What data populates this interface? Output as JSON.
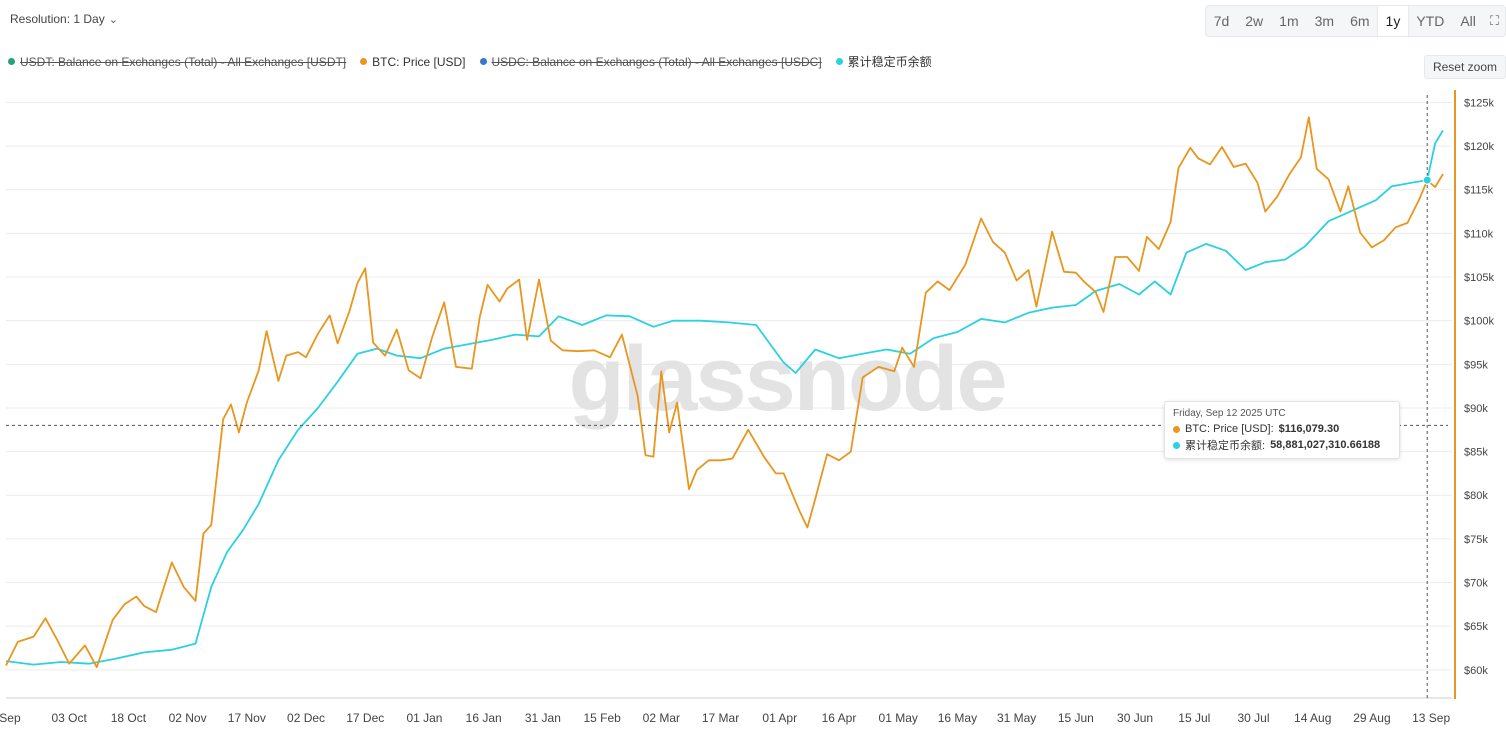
{
  "toolbar": {
    "resolution_label": "Resolution: 1 Day",
    "ranges": [
      "7d",
      "2w",
      "1m",
      "3m",
      "6m",
      "1y",
      "YTD",
      "All"
    ],
    "active_range": "1y",
    "reset_zoom_label": "Reset zoom"
  },
  "watermark": "glassnode",
  "colors": {
    "btc": "#E8961E",
    "stable": "#2BD1E0",
    "usdt": "#26A17B",
    "usdc": "#3B76C9",
    "grid": "#ececec",
    "axis_line": "#E8961E"
  },
  "legend": [
    {
      "label": "USDT: Balance on Exchanges (Total) - All Exchanges [USDT]",
      "color": "#26A17B",
      "enabled": false
    },
    {
      "label": "BTC: Price [USD]",
      "color": "#E8961E",
      "enabled": true
    },
    {
      "label": "USDC: Balance on Exchanges (Total) - All Exchanges [USDC]",
      "color": "#3B76C9",
      "enabled": false
    },
    {
      "label": "累计稳定币余额",
      "color": "#2BD1E0",
      "enabled": true
    }
  ],
  "tooltip": {
    "date": "Friday, Sep 12 2025 UTC",
    "btc_label": "BTC: Price [USD]:",
    "btc_value": "$116,079.30",
    "stable_label": "累计稳定币余额:",
    "stable_value": "58,881,027,310.66188"
  },
  "chart_data": {
    "type": "line",
    "title": "",
    "xlabel": "",
    "ylabel": "",
    "ylim": [
      57000,
      127000
    ],
    "y_ticks": [
      "$60k",
      "$65k",
      "$70k",
      "$75k",
      "$80k",
      "$85k",
      "$90k",
      "$95k",
      "$100k",
      "$105k",
      "$110k",
      "$115k",
      "$120k",
      "$125k"
    ],
    "x_tick_labels": [
      "Sep",
      "03 Oct",
      "18 Oct",
      "02 Nov",
      "17 Nov",
      "02 Dec",
      "17 Dec",
      "01 Jan",
      "16 Jan",
      "31 Jan",
      "15 Feb",
      "02 Mar",
      "17 Mar",
      "01 Apr",
      "16 Apr",
      "01 May",
      "16 May",
      "31 May",
      "15 Jun",
      "30 Jun",
      "15 Jul",
      "30 Jul",
      "14 Aug",
      "29 Aug",
      "13 Sep"
    ],
    "x_tick_dates": [
      "2024-09-18",
      "2024-10-03",
      "2024-10-18",
      "2024-11-02",
      "2024-11-17",
      "2024-12-02",
      "2024-12-17",
      "2025-01-01",
      "2025-01-16",
      "2025-01-31",
      "2025-02-15",
      "2025-03-02",
      "2025-03-17",
      "2025-04-01",
      "2025-04-16",
      "2025-05-01",
      "2025-05-16",
      "2025-05-31",
      "2025-06-15",
      "2025-06-30",
      "2025-07-15",
      "2025-07-30",
      "2025-08-14",
      "2025-08-29",
      "2025-09-13"
    ],
    "x_range": [
      "2024-09-17",
      "2025-09-16"
    ],
    "crosshair": {
      "date": "2025-09-12",
      "y": 88000
    },
    "series": [
      {
        "name": "BTC: Price [USD]",
        "color": "#E8961E",
        "points": [
          [
            "2024-09-17",
            60500
          ],
          [
            "2024-09-20",
            63200
          ],
          [
            "2024-09-24",
            63800
          ],
          [
            "2024-09-27",
            65900
          ],
          [
            "2024-09-30",
            63400
          ],
          [
            "2024-10-03",
            60700
          ],
          [
            "2024-10-07",
            62800
          ],
          [
            "2024-10-10",
            60300
          ],
          [
            "2024-10-14",
            65700
          ],
          [
            "2024-10-17",
            67500
          ],
          [
            "2024-10-20",
            68400
          ],
          [
            "2024-10-22",
            67300
          ],
          [
            "2024-10-25",
            66600
          ],
          [
            "2024-10-29",
            72300
          ],
          [
            "2024-11-01",
            69500
          ],
          [
            "2024-11-04",
            67900
          ],
          [
            "2024-11-06",
            75600
          ],
          [
            "2024-11-08",
            76600
          ],
          [
            "2024-11-11",
            88700
          ],
          [
            "2024-11-13",
            90400
          ],
          [
            "2024-11-15",
            87200
          ],
          [
            "2024-11-17",
            90600
          ],
          [
            "2024-11-20",
            94300
          ],
          [
            "2024-11-22",
            98800
          ],
          [
            "2024-11-25",
            93100
          ],
          [
            "2024-11-27",
            96000
          ],
          [
            "2024-11-30",
            96400
          ],
          [
            "2024-12-02",
            95800
          ],
          [
            "2024-12-05",
            98500
          ],
          [
            "2024-12-08",
            100600
          ],
          [
            "2024-12-10",
            97400
          ],
          [
            "2024-12-13",
            101100
          ],
          [
            "2024-12-15",
            104300
          ],
          [
            "2024-12-17",
            106000
          ],
          [
            "2024-12-19",
            97500
          ],
          [
            "2024-12-22",
            96000
          ],
          [
            "2024-12-25",
            99000
          ],
          [
            "2024-12-28",
            94300
          ],
          [
            "2024-12-31",
            93400
          ],
          [
            "2025-01-03",
            98200
          ],
          [
            "2025-01-06",
            102100
          ],
          [
            "2025-01-09",
            94700
          ],
          [
            "2025-01-13",
            94500
          ],
          [
            "2025-01-15",
            100400
          ],
          [
            "2025-01-17",
            104100
          ],
          [
            "2025-01-20",
            102200
          ],
          [
            "2025-01-22",
            103700
          ],
          [
            "2025-01-25",
            104700
          ],
          [
            "2025-01-27",
            97800
          ],
          [
            "2025-01-30",
            104700
          ],
          [
            "2025-02-02",
            97700
          ],
          [
            "2025-02-05",
            96600
          ],
          [
            "2025-02-09",
            96500
          ],
          [
            "2025-02-13",
            96600
          ],
          [
            "2025-02-17",
            95800
          ],
          [
            "2025-02-20",
            98400
          ],
          [
            "2025-02-24",
            91400
          ],
          [
            "2025-02-26",
            84600
          ],
          [
            "2025-02-28",
            84400
          ],
          [
            "2025-03-02",
            94200
          ],
          [
            "2025-03-04",
            87200
          ],
          [
            "2025-03-06",
            90600
          ],
          [
            "2025-03-09",
            80700
          ],
          [
            "2025-03-11",
            82900
          ],
          [
            "2025-03-14",
            84000
          ],
          [
            "2025-03-17",
            84000
          ],
          [
            "2025-03-20",
            84200
          ],
          [
            "2025-03-24",
            87500
          ],
          [
            "2025-03-28",
            84400
          ],
          [
            "2025-03-31",
            82500
          ],
          [
            "2025-04-02",
            82500
          ],
          [
            "2025-04-06",
            78200
          ],
          [
            "2025-04-08",
            76300
          ],
          [
            "2025-04-10",
            79600
          ],
          [
            "2025-04-13",
            84700
          ],
          [
            "2025-04-16",
            84000
          ],
          [
            "2025-04-19",
            85000
          ],
          [
            "2025-04-22",
            93500
          ],
          [
            "2025-04-26",
            94700
          ],
          [
            "2025-04-30",
            94200
          ],
          [
            "2025-05-02",
            96900
          ],
          [
            "2025-05-05",
            94700
          ],
          [
            "2025-05-08",
            103200
          ],
          [
            "2025-05-11",
            104500
          ],
          [
            "2025-05-14",
            103500
          ],
          [
            "2025-05-18",
            106400
          ],
          [
            "2025-05-22",
            111700
          ],
          [
            "2025-05-25",
            109000
          ],
          [
            "2025-05-28",
            107800
          ],
          [
            "2025-05-31",
            104600
          ],
          [
            "2025-06-03",
            105800
          ],
          [
            "2025-06-05",
            101600
          ],
          [
            "2025-06-09",
            110200
          ],
          [
            "2025-06-12",
            105600
          ],
          [
            "2025-06-15",
            105500
          ],
          [
            "2025-06-17",
            104500
          ],
          [
            "2025-06-20",
            103300
          ],
          [
            "2025-06-22",
            101000
          ],
          [
            "2025-06-25",
            107300
          ],
          [
            "2025-06-28",
            107300
          ],
          [
            "2025-07-01",
            105700
          ],
          [
            "2025-07-03",
            109600
          ],
          [
            "2025-07-06",
            108200
          ],
          [
            "2025-07-09",
            111300
          ],
          [
            "2025-07-11",
            117500
          ],
          [
            "2025-07-14",
            119800
          ],
          [
            "2025-07-16",
            118600
          ],
          [
            "2025-07-19",
            117900
          ],
          [
            "2025-07-22",
            119900
          ],
          [
            "2025-07-25",
            117600
          ],
          [
            "2025-07-28",
            118000
          ],
          [
            "2025-07-31",
            115800
          ],
          [
            "2025-08-02",
            112500
          ],
          [
            "2025-08-05",
            114200
          ],
          [
            "2025-08-08",
            116700
          ],
          [
            "2025-08-11",
            118700
          ],
          [
            "2025-08-13",
            123300
          ],
          [
            "2025-08-15",
            117400
          ],
          [
            "2025-08-18",
            116200
          ],
          [
            "2025-08-21",
            112500
          ],
          [
            "2025-08-23",
            115400
          ],
          [
            "2025-08-26",
            110100
          ],
          [
            "2025-08-29",
            108400
          ],
          [
            "2025-09-01",
            109200
          ],
          [
            "2025-09-04",
            110700
          ],
          [
            "2025-09-07",
            111200
          ],
          [
            "2025-09-10",
            113900
          ],
          [
            "2025-09-12",
            116080
          ],
          [
            "2025-09-14",
            115300
          ],
          [
            "2025-09-16",
            116800
          ]
        ]
      },
      {
        "name": "累计稳定币余额",
        "color": "#2BD1E0",
        "points": [
          [
            "2024-09-17",
            61000
          ],
          [
            "2024-09-24",
            60600
          ],
          [
            "2024-10-01",
            60900
          ],
          [
            "2024-10-08",
            60700
          ],
          [
            "2024-10-15",
            61300
          ],
          [
            "2024-10-22",
            62000
          ],
          [
            "2024-10-29",
            62300
          ],
          [
            "2024-11-04",
            63000
          ],
          [
            "2024-11-08",
            69500
          ],
          [
            "2024-11-12",
            73500
          ],
          [
            "2024-11-16",
            76000
          ],
          [
            "2024-11-20",
            79000
          ],
          [
            "2024-11-25",
            84000
          ],
          [
            "2024-11-30",
            87500
          ],
          [
            "2024-12-05",
            90000
          ],
          [
            "2024-12-10",
            93000
          ],
          [
            "2024-12-15",
            96200
          ],
          [
            "2024-12-20",
            96800
          ],
          [
            "2024-12-25",
            96000
          ],
          [
            "2024-12-31",
            95700
          ],
          [
            "2025-01-06",
            96800
          ],
          [
            "2025-01-12",
            97300
          ],
          [
            "2025-01-18",
            97800
          ],
          [
            "2025-01-24",
            98400
          ],
          [
            "2025-01-30",
            98200
          ],
          [
            "2025-02-04",
            100500
          ],
          [
            "2025-02-10",
            99500
          ],
          [
            "2025-02-16",
            100600
          ],
          [
            "2025-02-22",
            100500
          ],
          [
            "2025-02-28",
            99300
          ],
          [
            "2025-03-05",
            100000
          ],
          [
            "2025-03-12",
            100000
          ],
          [
            "2025-03-19",
            99800
          ],
          [
            "2025-03-26",
            99500
          ],
          [
            "2025-04-02",
            95200
          ],
          [
            "2025-04-05",
            94000
          ],
          [
            "2025-04-10",
            96700
          ],
          [
            "2025-04-16",
            95700
          ],
          [
            "2025-04-22",
            96200
          ],
          [
            "2025-04-28",
            96700
          ],
          [
            "2025-05-04",
            96200
          ],
          [
            "2025-05-10",
            98000
          ],
          [
            "2025-05-16",
            98700
          ],
          [
            "2025-05-22",
            100200
          ],
          [
            "2025-05-28",
            99800
          ],
          [
            "2025-06-03",
            100900
          ],
          [
            "2025-06-09",
            101500
          ],
          [
            "2025-06-15",
            101800
          ],
          [
            "2025-06-20",
            103400
          ],
          [
            "2025-06-26",
            104200
          ],
          [
            "2025-07-01",
            103000
          ],
          [
            "2025-07-05",
            104500
          ],
          [
            "2025-07-09",
            103000
          ],
          [
            "2025-07-13",
            107800
          ],
          [
            "2025-07-18",
            108800
          ],
          [
            "2025-07-23",
            108000
          ],
          [
            "2025-07-28",
            105800
          ],
          [
            "2025-08-02",
            106700
          ],
          [
            "2025-08-07",
            107000
          ],
          [
            "2025-08-12",
            108500
          ],
          [
            "2025-08-18",
            111400
          ],
          [
            "2025-08-24",
            112600
          ],
          [
            "2025-08-30",
            113800
          ],
          [
            "2025-09-03",
            115400
          ],
          [
            "2025-09-08",
            115800
          ],
          [
            "2025-09-12",
            116100
          ],
          [
            "2025-09-14",
            120300
          ],
          [
            "2025-09-16",
            121800
          ]
        ]
      }
    ]
  }
}
